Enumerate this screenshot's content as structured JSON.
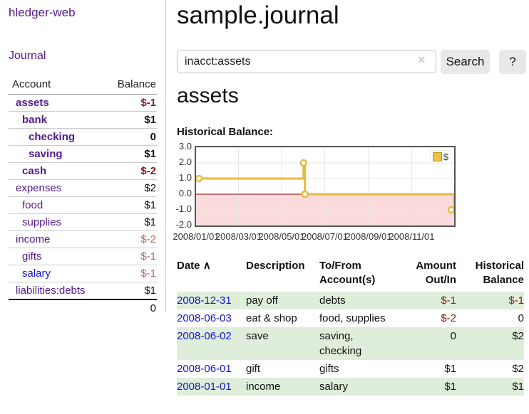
{
  "app": {
    "title": "hledger-web",
    "nav_journal": "Journal"
  },
  "sidebar": {
    "header": {
      "account": "Account",
      "balance": "Balance"
    },
    "rows": [
      {
        "name": "assets",
        "depth": 1,
        "balance": "$-1",
        "bold": true,
        "neg": true,
        "blue": false
      },
      {
        "name": "bank",
        "depth": 2,
        "balance": "$1",
        "bold": true,
        "neg": false,
        "blue": false
      },
      {
        "name": "checking",
        "depth": 3,
        "balance": "0",
        "bold": true,
        "neg": false,
        "blue": false
      },
      {
        "name": "saving",
        "depth": 3,
        "balance": "$1",
        "bold": true,
        "neg": false,
        "blue": false
      },
      {
        "name": "cash",
        "depth": 2,
        "balance": "$-2",
        "bold": true,
        "neg": true,
        "blue": false
      },
      {
        "name": "expenses",
        "depth": 1,
        "balance": "$2",
        "bold": false,
        "neg": false,
        "blue": false
      },
      {
        "name": "food",
        "depth": 2,
        "balance": "$1",
        "bold": false,
        "neg": false,
        "blue": false
      },
      {
        "name": "supplies",
        "depth": 2,
        "balance": "$1",
        "bold": false,
        "neg": false,
        "blue": false
      },
      {
        "name": "income",
        "depth": 1,
        "balance": "$-2",
        "bold": false,
        "neg": true,
        "blue": false
      },
      {
        "name": "gifts",
        "depth": 2,
        "balance": "$-1",
        "bold": false,
        "neg": true,
        "blue": false
      },
      {
        "name": "salary",
        "depth": 2,
        "balance": "$-1",
        "bold": false,
        "neg": true,
        "blue": true
      },
      {
        "name": "liabilities:debts",
        "depth": 1,
        "balance": "$1",
        "bold": false,
        "neg": false,
        "blue": false
      }
    ],
    "total": "0"
  },
  "header": {
    "title": "sample.journal"
  },
  "search": {
    "value": "inacct:assets",
    "clear_icon": "×",
    "button_label": "Search",
    "help_label": "?"
  },
  "main": {
    "account_title": "assets",
    "chart_title": "Historical Balance:"
  },
  "chart_data": {
    "type": "line",
    "subtype": "step-after",
    "title": "Historical Balance:",
    "series": [
      {
        "name": "$",
        "points": [
          [
            "2008-01-01",
            1.0
          ],
          [
            "2008-06-01",
            2.0
          ],
          [
            "2008-06-03",
            0.0
          ],
          [
            "2008-12-31",
            -1.0
          ]
        ]
      }
    ],
    "xlim": [
      "2008-01-01",
      "2008-12-31"
    ],
    "ylim": [
      -2.0,
      3.0
    ],
    "yticks": [
      "3.0",
      "2.0",
      "1.0",
      "0.0",
      "-1.0",
      "-2.0"
    ],
    "ytick_values": [
      3,
      2,
      1,
      0,
      -1,
      -2
    ],
    "xticks": [
      "2008/01/01",
      "2008/03/01",
      "2008/05/01",
      "2008/07/01",
      "2008/09/01",
      "2008/11/01"
    ],
    "grid": true,
    "legend": {
      "label": "$",
      "position": "top-right"
    },
    "negative_region": {
      "from": 0,
      "to": -2
    },
    "colors": {
      "line": "#e6bb3f",
      "marker_fill": "#ffffff",
      "negative_fill": "#fadada",
      "zero_line": "#8b0000",
      "grid": "#e6e6e6",
      "border": "#555555"
    }
  },
  "register": {
    "headers": {
      "date": "Date",
      "sort_icon": "∧",
      "description": "Description",
      "accounts": "To/From Account(s)",
      "amount": "Amount Out/In",
      "balance": "Historical Balance"
    },
    "rows": [
      {
        "date": "2008-12-31",
        "description": "pay off",
        "accounts": "debts",
        "amount": "$-1",
        "balance": "$-1",
        "amount_neg": true,
        "balance_neg": true
      },
      {
        "date": "2008-06-03",
        "description": "eat & shop",
        "accounts": "food, supplies",
        "amount": "$-2",
        "balance": "0",
        "amount_neg": true,
        "balance_neg": false
      },
      {
        "date": "2008-06-02",
        "description": "save",
        "accounts": "saving, checking",
        "amount": "0",
        "balance": "$2",
        "amount_neg": false,
        "balance_neg": false
      },
      {
        "date": "2008-06-01",
        "description": "gift",
        "accounts": "gifts",
        "amount": "$1",
        "balance": "$2",
        "amount_neg": false,
        "balance_neg": false
      },
      {
        "date": "2008-01-01",
        "description": "income",
        "accounts": "salary",
        "amount": "$1",
        "balance": "$1",
        "amount_neg": false,
        "balance_neg": false
      }
    ]
  }
}
